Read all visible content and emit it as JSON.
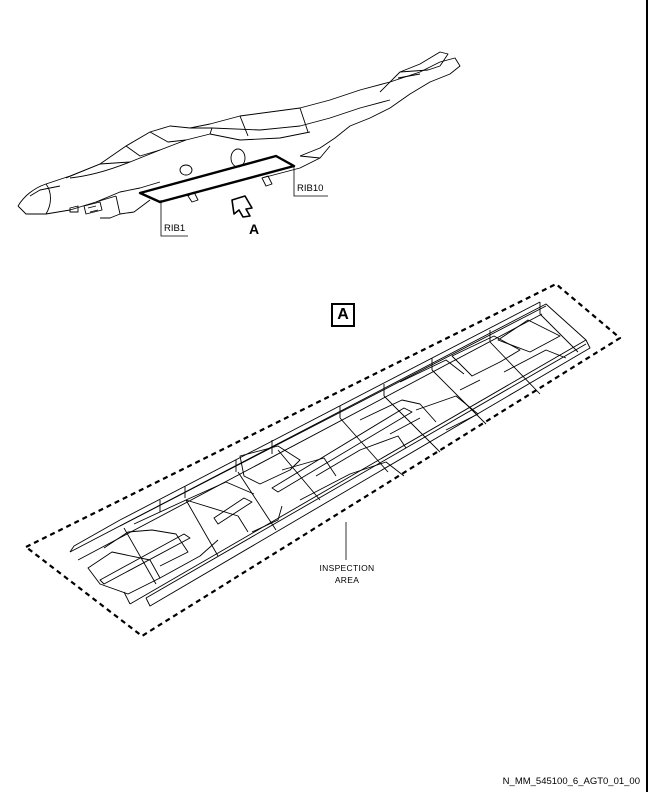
{
  "labels": {
    "rib10": "RIB10",
    "rib1": "RIB1",
    "view_arrow": "A",
    "detail_box": "A",
    "inspection_line1": "INSPECTION",
    "inspection_line2": "AREA"
  },
  "reference": "N_MM_545100_6_AGT0_01_00"
}
